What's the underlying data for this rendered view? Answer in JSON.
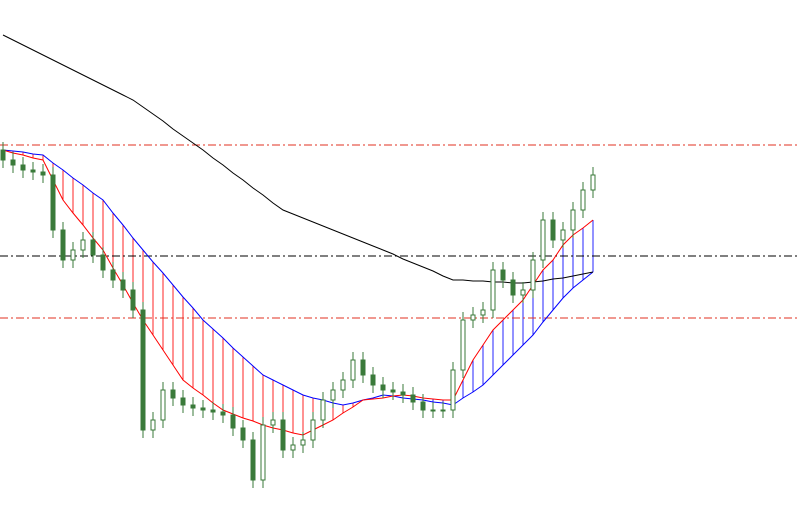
{
  "chart_data": {
    "type": "candlestick",
    "ylim": [
      1.1,
      1.1522
    ],
    "up_color": "#ffffff",
    "down_color": "#3a7a3a",
    "candle_outline": "#3a7a3a",
    "open": [
      1.1372,
      1.1362,
      1.1357,
      1.1352,
      1.135,
      1.1347,
      1.1292,
      1.1262,
      1.1272,
      1.1282,
      1.1267,
      1.1252,
      1.1242,
      1.1232,
      1.1212,
      1.1092,
      1.1102,
      1.1132,
      1.1124,
      1.1117,
      1.1114,
      1.1112,
      1.111,
      1.1107,
      1.1094,
      1.1082,
      1.1042,
      1.1097,
      1.1102,
      1.1072,
      1.1077,
      1.1082,
      1.1102,
      1.1122,
      1.1132,
      1.1142,
      1.1162,
      1.1147,
      1.1137,
      1.1132,
      1.113,
      1.1127,
      1.112,
      1.1112,
      1.1112,
      1.1112,
      1.1152,
      1.1202,
      1.1207,
      1.1212,
      1.1252,
      1.1242,
      1.1227,
      1.1232,
      1.1262,
      1.1302,
      1.1282,
      1.1292,
      1.1312,
      1.1332
    ],
    "high": [
      1.138,
      1.137,
      1.1365,
      1.136,
      1.1358,
      1.1355,
      1.13,
      1.128,
      1.129,
      1.129,
      1.1275,
      1.126,
      1.125,
      1.124,
      1.122,
      1.111,
      1.114,
      1.114,
      1.1132,
      1.1125,
      1.1122,
      1.112,
      1.1118,
      1.1115,
      1.1102,
      1.109,
      1.1105,
      1.111,
      1.111,
      1.1085,
      1.109,
      1.111,
      1.113,
      1.114,
      1.115,
      1.117,
      1.117,
      1.1155,
      1.1145,
      1.114,
      1.1138,
      1.1135,
      1.1128,
      1.112,
      1.112,
      1.116,
      1.121,
      1.1215,
      1.122,
      1.126,
      1.126,
      1.125,
      1.124,
      1.127,
      1.131,
      1.131,
      1.13,
      1.132,
      1.134,
      1.1355
    ],
    "low": [
      1.1354,
      1.1349,
      1.1344,
      1.1342,
      1.1339,
      1.1284,
      1.1254,
      1.1254,
      1.1264,
      1.1259,
      1.1244,
      1.1234,
      1.1224,
      1.1204,
      1.1084,
      1.1084,
      1.1094,
      1.1116,
      1.1109,
      1.1106,
      1.1104,
      1.1102,
      1.1099,
      1.1086,
      1.1074,
      1.1034,
      1.1034,
      1.1089,
      1.1064,
      1.1064,
      1.1069,
      1.1074,
      1.1094,
      1.1114,
      1.1124,
      1.1134,
      1.1139,
      1.1129,
      1.1124,
      1.1122,
      1.1119,
      1.1112,
      1.1104,
      1.1104,
      1.1104,
      1.1104,
      1.1144,
      1.1194,
      1.1199,
      1.1204,
      1.1234,
      1.1219,
      1.1219,
      1.1224,
      1.1254,
      1.1274,
      1.1274,
      1.1284,
      1.1304,
      1.1324
    ],
    "close": [
      1.1362,
      1.1357,
      1.1352,
      1.135,
      1.1347,
      1.1292,
      1.1262,
      1.1272,
      1.1282,
      1.1267,
      1.1252,
      1.1242,
      1.1232,
      1.1212,
      1.1092,
      1.1102,
      1.1132,
      1.1124,
      1.1117,
      1.1114,
      1.1112,
      1.111,
      1.1107,
      1.1094,
      1.1082,
      1.1042,
      1.1097,
      1.1102,
      1.1072,
      1.1077,
      1.1082,
      1.1102,
      1.1122,
      1.1132,
      1.1142,
      1.1162,
      1.1147,
      1.1137,
      1.1132,
      1.113,
      1.1127,
      1.112,
      1.1112,
      1.1112,
      1.1112,
      1.1152,
      1.1202,
      1.1207,
      1.1212,
      1.1252,
      1.1242,
      1.1227,
      1.1232,
      1.1262,
      1.1302,
      1.1282,
      1.1292,
      1.1312,
      1.1332,
      1.1347
    ],
    "span_a": {
      "color": "#0000ff",
      "values": [
        1.1372,
        1.1371,
        1.137,
        1.1368,
        1.1367,
        1.1359,
        1.1352,
        1.1344,
        1.1337,
        1.1329,
        1.1322,
        1.1309,
        1.1297,
        1.1284,
        1.1272,
        1.126,
        1.1249,
        1.1237,
        1.1225,
        1.1214,
        1.1202,
        1.1193,
        1.1184,
        1.1174,
        1.1165,
        1.1156,
        1.1147,
        1.1142,
        1.1137,
        1.1132,
        1.1127,
        1.1124,
        1.1122,
        1.1119,
        1.1117,
        1.1119,
        1.1122,
        1.1124,
        1.1127,
        1.1126,
        1.1124,
        1.1123,
        1.1122,
        1.112,
        1.1119,
        1.1117,
        1.1124,
        1.113,
        1.1137,
        1.1147,
        1.1157,
        1.1167,
        1.1177,
        1.1187,
        1.12,
        1.1212,
        1.1224,
        1.1234,
        1.1242,
        1.125
      ]
    },
    "span_b": {
      "color": "#ff0000",
      "values": [
        1.1372,
        1.1369,
        1.1367,
        1.1364,
        1.1362,
        1.1342,
        1.1322,
        1.1309,
        1.1297,
        1.1284,
        1.1272,
        1.1254,
        1.1237,
        1.1219,
        1.1202,
        1.1187,
        1.1172,
        1.1157,
        1.1142,
        1.1134,
        1.1127,
        1.1119,
        1.1112,
        1.1108,
        1.1104,
        1.1101,
        1.1097,
        1.1094,
        1.1092,
        1.1089,
        1.1087,
        1.1092,
        1.1097,
        1.1102,
        1.1109,
        1.1115,
        1.1122,
        1.1123,
        1.1124,
        1.1126,
        1.1127,
        1.1126,
        1.1124,
        1.1123,
        1.1122,
        1.1122,
        1.1142,
        1.1162,
        1.1177,
        1.1192,
        1.1202,
        1.1212,
        1.1222,
        1.1237,
        1.1252,
        1.1262,
        1.1277,
        1.1287,
        1.1294,
        1.1302
      ]
    },
    "ma": {
      "color": "#000000",
      "values": [
        1.1487,
        1.1482,
        1.1477,
        1.1472,
        1.1467,
        1.1462,
        1.1457,
        1.1452,
        1.1447,
        1.1442,
        1.1437,
        1.1432,
        1.1427,
        1.1422,
        1.1415,
        1.1408,
        1.1401,
        1.1393,
        1.1386,
        1.1379,
        1.1372,
        1.1364,
        1.1357,
        1.1349,
        1.1342,
        1.1334,
        1.1327,
        1.1319,
        1.1312,
        1.1308,
        1.1304,
        1.13,
        1.1296,
        1.1292,
        1.1288,
        1.1284,
        1.128,
        1.1276,
        1.1272,
        1.1268,
        1.1263,
        1.1259,
        1.1255,
        1.1251,
        1.1246,
        1.1242,
        1.1242,
        1.1241,
        1.1241,
        1.124,
        1.124,
        1.1239,
        1.1239,
        1.124,
        1.1241,
        1.1243,
        1.1244,
        1.1246,
        1.1248,
        1.125
      ]
    },
    "levels": [
      {
        "value": 1.1377,
        "color": "#e03020"
      },
      {
        "value": 1.1266,
        "color": "#000000"
      },
      {
        "value": 1.1204,
        "color": "#e03020"
      }
    ]
  }
}
